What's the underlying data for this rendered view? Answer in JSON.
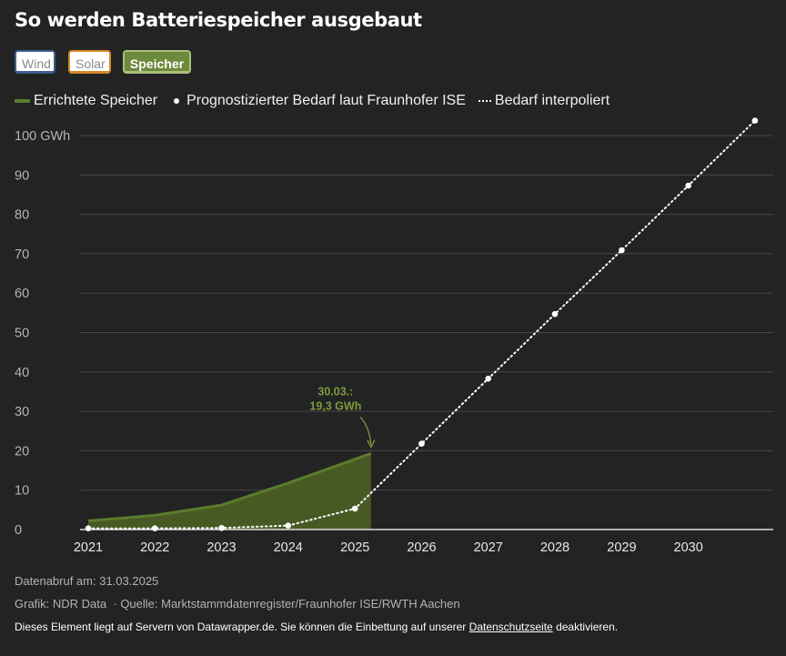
{
  "title": "So werden Batteriespeicher ausgebaut",
  "buttons": {
    "wind": "Wind",
    "solar": "Solar",
    "speicher": "Speicher"
  },
  "legend": {
    "built": "Errichtete Speicher",
    "forecast": "Prognostizierter Bedarf laut Fraunhofer ISE",
    "interpolated": "Bedarf interpoliert"
  },
  "colors": {
    "built_line": "#5a7c2c",
    "built_fill": "#4b6124",
    "annotation": "#7d9a3e",
    "dots": "#ffffff",
    "grid": "#474747"
  },
  "chart_data": {
    "type": "area",
    "x_ticks": [
      "2021",
      "2022",
      "2023",
      "2024",
      "2025",
      "2026",
      "2027",
      "2028",
      "2029",
      "2030"
    ],
    "y_ticks": [
      {
        "value": 0,
        "label": "0"
      },
      {
        "value": 10,
        "label": "10"
      },
      {
        "value": 20,
        "label": "20"
      },
      {
        "value": 30,
        "label": "30"
      },
      {
        "value": 40,
        "label": "40"
      },
      {
        "value": 50,
        "label": "50"
      },
      {
        "value": 60,
        "label": "60"
      },
      {
        "value": 70,
        "label": "70"
      },
      {
        "value": 80,
        "label": "80"
      },
      {
        "value": 90,
        "label": "90"
      },
      {
        "value": 100,
        "label": "100 GWh"
      }
    ],
    "xlim": [
      "2021-01-01",
      "2031-01-01"
    ],
    "ylim": [
      0,
      100
    ],
    "series": [
      {
        "name": "Errichtete Speicher",
        "kind": "area",
        "points": [
          {
            "x": "2021-01-01",
            "y": 2.2
          },
          {
            "x": "2022-01-01",
            "y": 3.6
          },
          {
            "x": "2023-01-01",
            "y": 6.2
          },
          {
            "x": "2024-01-01",
            "y": 11.8
          },
          {
            "x": "2025-03-30",
            "y": 19.3
          }
        ]
      },
      {
        "name": "Prognostizierter Bedarf laut Fraunhofer ISE",
        "kind": "points",
        "points": [
          {
            "x": "2021-01-01",
            "y": 0.3
          },
          {
            "x": "2022-01-01",
            "y": 0.3
          },
          {
            "x": "2023-01-01",
            "y": 0.4
          },
          {
            "x": "2024-01-01",
            "y": 1.0
          },
          {
            "x": "2025-01-01",
            "y": 5.3
          },
          {
            "x": "2026-01-01",
            "y": 21.8
          },
          {
            "x": "2027-01-01",
            "y": 38.3
          },
          {
            "x": "2028-01-01",
            "y": 54.7
          },
          {
            "x": "2029-01-01",
            "y": 70.9
          },
          {
            "x": "2030-01-01",
            "y": 87.3
          },
          {
            "x": "2031-01-01",
            "y": 103.8
          }
        ]
      },
      {
        "name": "Bedarf interpoliert",
        "kind": "dotted-line",
        "points": [
          {
            "x": "2021-01-01",
            "y": 0.3
          },
          {
            "x": "2022-01-01",
            "y": 0.3
          },
          {
            "x": "2023-01-01",
            "y": 0.4
          },
          {
            "x": "2024-01-01",
            "y": 1.0
          },
          {
            "x": "2025-01-01",
            "y": 5.3
          },
          {
            "x": "2026-01-01",
            "y": 21.8
          },
          {
            "x": "2027-01-01",
            "y": 38.3
          },
          {
            "x": "2028-01-01",
            "y": 54.7
          },
          {
            "x": "2029-01-01",
            "y": 70.9
          },
          {
            "x": "2030-01-01",
            "y": 87.3
          },
          {
            "x": "2031-01-01",
            "y": 103.8
          }
        ]
      }
    ],
    "annotation": {
      "line1": "30.03.:",
      "line2": "19,3 GWh",
      "x": "2025-03-30",
      "y": 19.3
    },
    "grid": true,
    "legend_position": "top-left"
  },
  "footer": {
    "date": "Datenabruf am: 31.03.2025",
    "credit": "Grafik: NDR Data",
    "source": "· Quelle: Marktstammdatenregister/Fraunhofer ISE/RWTH Aachen",
    "privacy_text": "Dieses Element liegt auf Servern von Datawrapper.de. Sie können die Einbettung auf unserer",
    "privacy_link": "Datenschutzseite",
    "privacy_tail": "deaktivieren."
  }
}
